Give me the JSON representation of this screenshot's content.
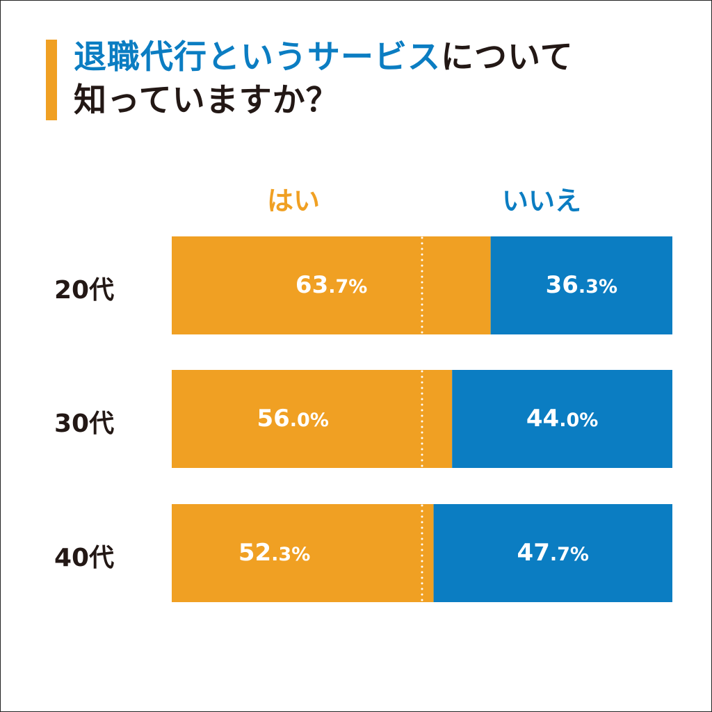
{
  "title": {
    "line1_blue": "退職代行というサービス",
    "line1_black": "について",
    "line2": "知っていますか？"
  },
  "colors": {
    "yes": "#f0a023",
    "no": "#0b7dc2",
    "accent": "#f0a023",
    "title_blue": "#0b7dc2",
    "text": "#231815"
  },
  "chart_data": {
    "type": "bar",
    "orientation": "horizontal",
    "stacked": true,
    "categories": [
      "20代",
      "30代",
      "40代"
    ],
    "series": [
      {
        "name": "はい",
        "values": [
          63.7,
          56.0,
          52.3
        ],
        "labels": [
          "63.7%",
          "56.0%",
          "52.3%"
        ]
      },
      {
        "name": "いいえ",
        "values": [
          36.3,
          44.0,
          47.7
        ],
        "labels": [
          "36.3%",
          "44.0%",
          "47.7%"
        ]
      }
    ],
    "xlim": [
      0,
      100
    ],
    "reference_line": 50,
    "legend": "top"
  }
}
